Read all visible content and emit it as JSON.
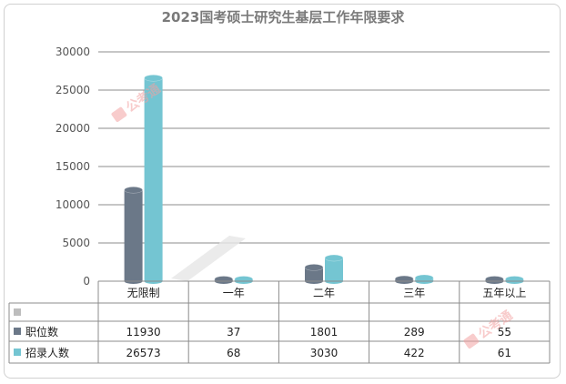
{
  "chart_data": {
    "type": "bar",
    "title": "2023国考硕士研究生基层工作年限要求",
    "categories": [
      "无限制",
      "一年",
      "二年",
      "三年",
      "五年以上"
    ],
    "series": [
      {
        "name": "职位数",
        "values": [
          11930,
          37,
          1801,
          289,
          55
        ],
        "color": "#6b7888"
      },
      {
        "name": "招录人数",
        "values": [
          26573,
          68,
          3030,
          422,
          61
        ],
        "color": "#74c5d2"
      }
    ],
    "ylim": [
      0,
      30000
    ],
    "yticks": [
      0,
      5000,
      10000,
      15000,
      20000,
      25000,
      30000
    ],
    "grid": true,
    "legend": "data-table",
    "watermark": "公考通"
  }
}
